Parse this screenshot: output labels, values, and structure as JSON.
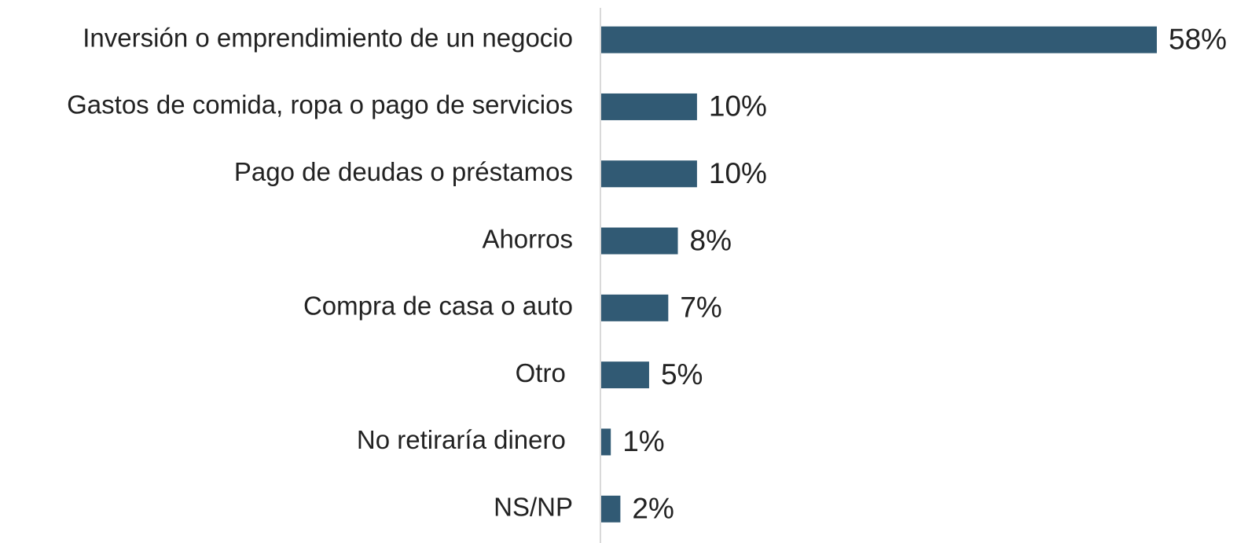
{
  "chart_data": {
    "type": "bar",
    "orientation": "horizontal",
    "categories": [
      "Inversión o emprendimiento de un negocio",
      "Gastos de comida, ropa o pago de servicios",
      "Pago de deudas o préstamos",
      "Ahorros",
      "Compra de casa o auto",
      "Otro ",
      "No retiraría dinero ",
      "NS/NP"
    ],
    "values": [
      58,
      10,
      10,
      8,
      7,
      5,
      1,
      2
    ],
    "value_labels": [
      "58%",
      "10%",
      "10%",
      "8%",
      "7%",
      "5%",
      "1%",
      "2%"
    ],
    "color": "#315a74"
  }
}
